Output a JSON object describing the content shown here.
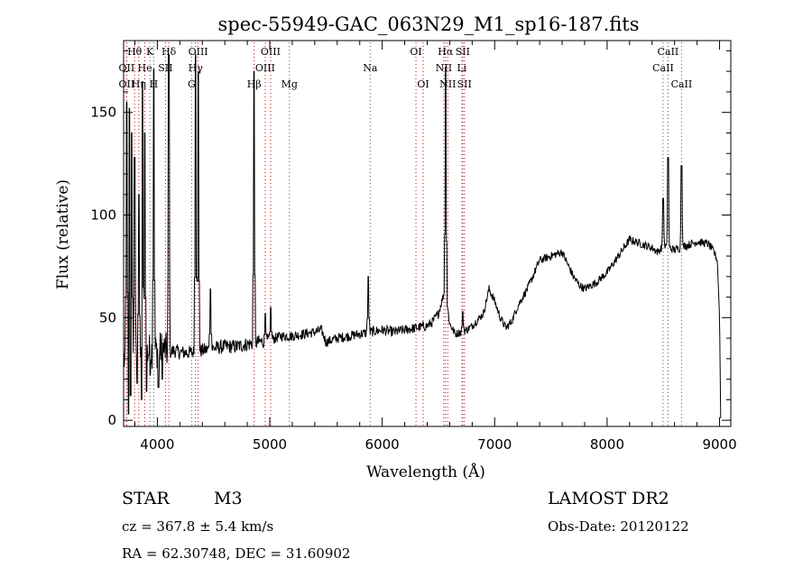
{
  "chart_data": {
    "type": "line",
    "title": "spec-55949-GAC_063N29_M1_sp16-187.fits",
    "xlabel": "Wavelength (Å)",
    "ylabel": "Flux (relative)",
    "xlim": [
      3700,
      9100
    ],
    "ylim": [
      -3,
      185
    ],
    "xticks": [
      4000,
      5000,
      6000,
      7000,
      8000,
      9000
    ],
    "yticks": [
      0,
      50,
      100,
      150
    ],
    "series": [
      {
        "x": [
          3700,
          3720,
          3740,
          3760,
          3780,
          3800,
          3830,
          3860,
          3900,
          3950,
          4000,
          4050,
          4100,
          4150,
          4200,
          4300,
          4400,
          4500,
          4600,
          4700,
          4800,
          4900,
          5000,
          5100,
          5200,
          5300,
          5400,
          5460,
          5500,
          5600,
          5700,
          5800,
          5900,
          6000,
          6100,
          6200,
          6300,
          6400,
          6450,
          6500,
          6540,
          6560,
          6600,
          6650,
          6700,
          6750,
          6800,
          6900,
          6950,
          7000,
          7050,
          7100,
          7150,
          7200,
          7300,
          7400,
          7500,
          7600,
          7650,
          7700,
          7750,
          7800,
          7900,
          8000,
          8050,
          8100,
          8150,
          8200,
          8300,
          8400,
          8450,
          8500,
          8550,
          8600,
          8700,
          8800,
          8900,
          8950,
          8980,
          9000,
          9010
        ],
        "y": [
          30,
          28,
          32,
          35,
          33,
          34,
          32,
          31,
          33,
          34,
          34,
          35,
          33,
          34,
          33,
          33,
          34,
          35,
          36,
          36,
          37,
          38,
          39,
          41,
          41,
          42,
          43,
          44,
          38,
          40,
          41,
          42,
          43,
          44,
          43,
          44,
          45,
          46,
          48,
          52,
          60,
          64,
          47,
          42,
          43,
          44,
          46,
          52,
          64,
          58,
          50,
          45,
          48,
          55,
          65,
          78,
          80,
          82,
          76,
          70,
          66,
          64,
          67,
          72,
          76,
          80,
          84,
          88,
          86,
          84,
          82,
          85,
          84,
          83,
          85,
          87,
          86,
          82,
          78,
          50,
          1
        ]
      }
    ],
    "emission_peaks": [
      {
        "x": 3727,
        "y": 155
      },
      {
        "x": 3750,
        "y": 152
      },
      {
        "x": 3771,
        "y": 140
      },
      {
        "x": 3798,
        "y": 128
      },
      {
        "x": 3835,
        "y": 110
      },
      {
        "x": 3869,
        "y": 165
      },
      {
        "x": 3889,
        "y": 140
      },
      {
        "x": 3968,
        "y": 171
      },
      {
        "x": 4102,
        "y": 178
      },
      {
        "x": 4340,
        "y": 178
      },
      {
        "x": 4363,
        "y": 170
      },
      {
        "x": 4471,
        "y": 64
      },
      {
        "x": 4861,
        "y": 170
      },
      {
        "x": 4959,
        "y": 52
      },
      {
        "x": 5007,
        "y": 55
      },
      {
        "x": 5876,
        "y": 70
      },
      {
        "x": 6563,
        "y": 172
      },
      {
        "x": 6716,
        "y": 53
      },
      {
        "x": 8498,
        "y": 108
      },
      {
        "x": 8542,
        "y": 128
      },
      {
        "x": 8662,
        "y": 124
      }
    ],
    "absorption_dips": [
      {
        "x": 3745,
        "y": 3
      },
      {
        "x": 3762,
        "y": 12
      },
      {
        "x": 3820,
        "y": 18
      },
      {
        "x": 3860,
        "y": 10
      },
      {
        "x": 3905,
        "y": 14
      },
      {
        "x": 3935,
        "y": 22
      },
      {
        "x": 4010,
        "y": 16
      },
      {
        "x": 4045,
        "y": 20
      }
    ],
    "line_markers": [
      {
        "label": "Hθ",
        "x": 3798,
        "row": 1,
        "color": "#cc0000"
      },
      {
        "label": "K",
        "x": 3934,
        "row": 1,
        "color": "#555555"
      },
      {
        "label": "Hδ",
        "x": 4102,
        "row": 1,
        "color": "#cc0000"
      },
      {
        "label": "OIII",
        "x": 4363,
        "row": 1,
        "color": "#cc0000"
      },
      {
        "label": "OIII",
        "x": 5007,
        "row": 1,
        "color": "#cc0000"
      },
      {
        "label": "OI",
        "x": 6300,
        "row": 1,
        "color": "#cc0000"
      },
      {
        "label": "Hα",
        "x": 6563,
        "row": 1,
        "color": "#cc0000"
      },
      {
        "label": "SII",
        "x": 6716,
        "row": 1,
        "color": "#cc0000"
      },
      {
        "label": "CaII",
        "x": 8542,
        "row": 1,
        "color": "#555555"
      },
      {
        "label": "OII",
        "x": 3727,
        "row": 2,
        "color": "#cc0000"
      },
      {
        "label": "He",
        "x": 3889,
        "row": 2,
        "color": "#cc0000"
      },
      {
        "label": "SII",
        "x": 4072,
        "row": 2,
        "color": "#cc0000"
      },
      {
        "label": "Hγ",
        "x": 4340,
        "row": 2,
        "color": "#cc0000"
      },
      {
        "label": "OIII",
        "x": 4959,
        "row": 2,
        "color": "#cc0000"
      },
      {
        "label": "Na",
        "x": 5893,
        "row": 2,
        "color": "#555555"
      },
      {
        "label": "NII",
        "x": 6548,
        "row": 2,
        "color": "#cc0000"
      },
      {
        "label": "Li",
        "x": 6708,
        "row": 2,
        "color": "#555555"
      },
      {
        "label": "CaII",
        "x": 8498,
        "row": 2,
        "color": "#555555"
      },
      {
        "label": "OII",
        "x": 3727,
        "row": 3,
        "color": "#cc0000"
      },
      {
        "label": "Hη",
        "x": 3835,
        "row": 3,
        "color": "#cc0000"
      },
      {
        "label": "H",
        "x": 3968,
        "row": 3,
        "color": "#555555"
      },
      {
        "label": "G",
        "x": 4305,
        "row": 3,
        "color": "#555555"
      },
      {
        "label": "Hβ",
        "x": 4861,
        "row": 3,
        "color": "#cc0000"
      },
      {
        "label": "Mg",
        "x": 5175,
        "row": 3,
        "color": "#555555"
      },
      {
        "label": "OI",
        "x": 6364,
        "row": 3,
        "color": "#cc0000"
      },
      {
        "label": "NII",
        "x": 6583,
        "row": 3,
        "color": "#cc0000"
      },
      {
        "label": "SII",
        "x": 6731,
        "row": 3,
        "color": "#cc0000"
      },
      {
        "label": "CaII",
        "x": 8662,
        "row": 3,
        "color": "#555555"
      }
    ]
  },
  "info": {
    "object_type": "STAR",
    "subclass": "M3",
    "survey": "LAMOST DR2",
    "cz": "cz = 367.8 ± 5.4 km/s",
    "obs_date": "Obs-Date: 20120122",
    "coords": "RA =  62.30748, DEC =  31.60902"
  },
  "colors": {
    "spectrum": "#000000",
    "emission_marker": "#cc0000",
    "absorption_marker": "#555555"
  }
}
